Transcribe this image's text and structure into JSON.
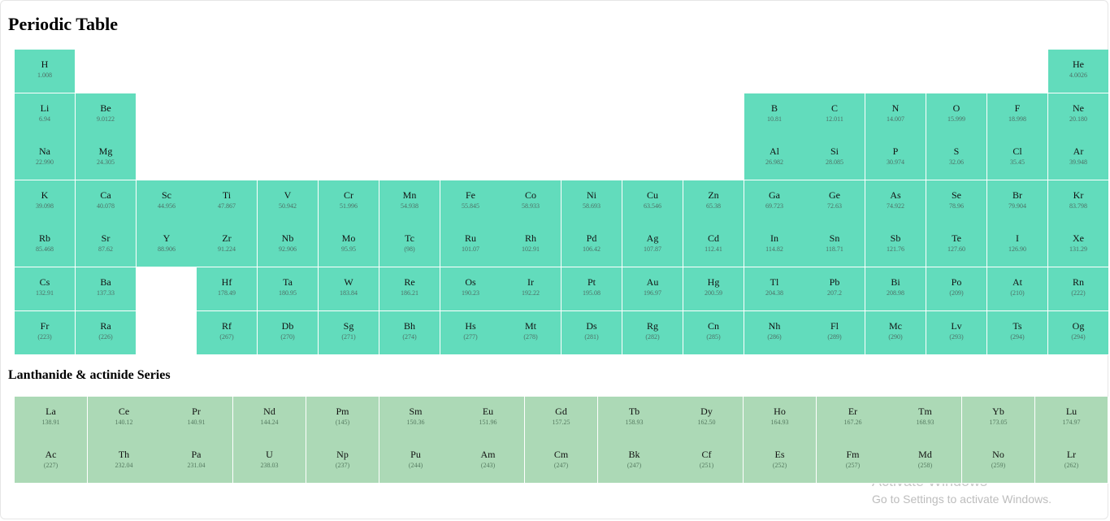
{
  "title": "Periodic Table",
  "series_title": "Lanthanide & actinide Series",
  "colors": {
    "main_cell": "#62dcbc",
    "series_cell": "#acd9b6"
  },
  "main_elements": [
    {
      "symbol": "H",
      "mass": "1.008",
      "period": 1,
      "group": 1
    },
    {
      "symbol": "He",
      "mass": "4.0026",
      "period": 1,
      "group": 18
    },
    {
      "symbol": "Li",
      "mass": "6.94",
      "period": 2,
      "group": 1
    },
    {
      "symbol": "Be",
      "mass": "9.0122",
      "period": 2,
      "group": 2
    },
    {
      "symbol": "B",
      "mass": "10.81",
      "period": 2,
      "group": 13
    },
    {
      "symbol": "C",
      "mass": "12.011",
      "period": 2,
      "group": 14
    },
    {
      "symbol": "N",
      "mass": "14.007",
      "period": 2,
      "group": 15
    },
    {
      "symbol": "O",
      "mass": "15.999",
      "period": 2,
      "group": 16
    },
    {
      "symbol": "F",
      "mass": "18.998",
      "period": 2,
      "group": 17
    },
    {
      "symbol": "Ne",
      "mass": "20.180",
      "period": 2,
      "group": 18
    },
    {
      "symbol": "Na",
      "mass": "22.990",
      "period": 3,
      "group": 1
    },
    {
      "symbol": "Mg",
      "mass": "24.305",
      "period": 3,
      "group": 2
    },
    {
      "symbol": "Al",
      "mass": "26.982",
      "period": 3,
      "group": 13
    },
    {
      "symbol": "Si",
      "mass": "28.085",
      "period": 3,
      "group": 14
    },
    {
      "symbol": "P",
      "mass": "30.974",
      "period": 3,
      "group": 15
    },
    {
      "symbol": "S",
      "mass": "32.06",
      "period": 3,
      "group": 16
    },
    {
      "symbol": "Cl",
      "mass": "35.45",
      "period": 3,
      "group": 17
    },
    {
      "symbol": "Ar",
      "mass": "39.948",
      "period": 3,
      "group": 18
    },
    {
      "symbol": "K",
      "mass": "39.098",
      "period": 4,
      "group": 1
    },
    {
      "symbol": "Ca",
      "mass": "40.078",
      "period": 4,
      "group": 2
    },
    {
      "symbol": "Sc",
      "mass": "44.956",
      "period": 4,
      "group": 3
    },
    {
      "symbol": "Ti",
      "mass": "47.867",
      "period": 4,
      "group": 4
    },
    {
      "symbol": "V",
      "mass": "50.942",
      "period": 4,
      "group": 5
    },
    {
      "symbol": "Cr",
      "mass": "51.996",
      "period": 4,
      "group": 6
    },
    {
      "symbol": "Mn",
      "mass": "54.938",
      "period": 4,
      "group": 7
    },
    {
      "symbol": "Fe",
      "mass": "55.845",
      "period": 4,
      "group": 8
    },
    {
      "symbol": "Co",
      "mass": "58.933",
      "period": 4,
      "group": 9
    },
    {
      "symbol": "Ni",
      "mass": "58.693",
      "period": 4,
      "group": 10
    },
    {
      "symbol": "Cu",
      "mass": "63.546",
      "period": 4,
      "group": 11
    },
    {
      "symbol": "Zn",
      "mass": "65.38",
      "period": 4,
      "group": 12
    },
    {
      "symbol": "Ga",
      "mass": "69.723",
      "period": 4,
      "group": 13
    },
    {
      "symbol": "Ge",
      "mass": "72.63",
      "period": 4,
      "group": 14
    },
    {
      "symbol": "As",
      "mass": "74.922",
      "period": 4,
      "group": 15
    },
    {
      "symbol": "Se",
      "mass": "78.96",
      "period": 4,
      "group": 16
    },
    {
      "symbol": "Br",
      "mass": "79.904",
      "period": 4,
      "group": 17
    },
    {
      "symbol": "Kr",
      "mass": "83.798",
      "period": 4,
      "group": 18
    },
    {
      "symbol": "Rb",
      "mass": "85.468",
      "period": 5,
      "group": 1
    },
    {
      "symbol": "Sr",
      "mass": "87.62",
      "period": 5,
      "group": 2
    },
    {
      "symbol": "Y",
      "mass": "88.906",
      "period": 5,
      "group": 3
    },
    {
      "symbol": "Zr",
      "mass": "91.224",
      "period": 5,
      "group": 4
    },
    {
      "symbol": "Nb",
      "mass": "92.906",
      "period": 5,
      "group": 5
    },
    {
      "symbol": "Mo",
      "mass": "95.95",
      "period": 5,
      "group": 6
    },
    {
      "symbol": "Tc",
      "mass": "(98)",
      "period": 5,
      "group": 7
    },
    {
      "symbol": "Ru",
      "mass": "101.07",
      "period": 5,
      "group": 8
    },
    {
      "symbol": "Rh",
      "mass": "102.91",
      "period": 5,
      "group": 9
    },
    {
      "symbol": "Pd",
      "mass": "106.42",
      "period": 5,
      "group": 10
    },
    {
      "symbol": "Ag",
      "mass": "107.87",
      "period": 5,
      "group": 11
    },
    {
      "symbol": "Cd",
      "mass": "112.41",
      "period": 5,
      "group": 12
    },
    {
      "symbol": "In",
      "mass": "114.82",
      "period": 5,
      "group": 13
    },
    {
      "symbol": "Sn",
      "mass": "118.71",
      "period": 5,
      "group": 14
    },
    {
      "symbol": "Sb",
      "mass": "121.76",
      "period": 5,
      "group": 15
    },
    {
      "symbol": "Te",
      "mass": "127.60",
      "period": 5,
      "group": 16
    },
    {
      "symbol": "I",
      "mass": "126.90",
      "period": 5,
      "group": 17
    },
    {
      "symbol": "Xe",
      "mass": "131.29",
      "period": 5,
      "group": 18
    },
    {
      "symbol": "Cs",
      "mass": "132.91",
      "period": 6,
      "group": 1
    },
    {
      "symbol": "Ba",
      "mass": "137.33",
      "period": 6,
      "group": 2
    },
    {
      "symbol": "Hf",
      "mass": "178.49",
      "period": 6,
      "group": 4
    },
    {
      "symbol": "Ta",
      "mass": "180.95",
      "period": 6,
      "group": 5
    },
    {
      "symbol": "W",
      "mass": "183.84",
      "period": 6,
      "group": 6
    },
    {
      "symbol": "Re",
      "mass": "186.21",
      "period": 6,
      "group": 7
    },
    {
      "symbol": "Os",
      "mass": "190.23",
      "period": 6,
      "group": 8
    },
    {
      "symbol": "Ir",
      "mass": "192.22",
      "period": 6,
      "group": 9
    },
    {
      "symbol": "Pt",
      "mass": "195.08",
      "period": 6,
      "group": 10
    },
    {
      "symbol": "Au",
      "mass": "196.97",
      "period": 6,
      "group": 11
    },
    {
      "symbol": "Hg",
      "mass": "200.59",
      "period": 6,
      "group": 12
    },
    {
      "symbol": "Tl",
      "mass": "204.38",
      "period": 6,
      "group": 13
    },
    {
      "symbol": "Pb",
      "mass": "207.2",
      "period": 6,
      "group": 14
    },
    {
      "symbol": "Bi",
      "mass": "208.98",
      "period": 6,
      "group": 15
    },
    {
      "symbol": "Po",
      "mass": "(209)",
      "period": 6,
      "group": 16
    },
    {
      "symbol": "At",
      "mass": "(210)",
      "period": 6,
      "group": 17
    },
    {
      "symbol": "Rn",
      "mass": "(222)",
      "period": 6,
      "group": 18
    },
    {
      "symbol": "Fr",
      "mass": "(223)",
      "period": 7,
      "group": 1
    },
    {
      "symbol": "Ra",
      "mass": "(226)",
      "period": 7,
      "group": 2
    },
    {
      "symbol": "Rf",
      "mass": "(267)",
      "period": 7,
      "group": 4
    },
    {
      "symbol": "Db",
      "mass": "(270)",
      "period": 7,
      "group": 5
    },
    {
      "symbol": "Sg",
      "mass": "(271)",
      "period": 7,
      "group": 6
    },
    {
      "symbol": "Bh",
      "mass": "(274)",
      "period": 7,
      "group": 7
    },
    {
      "symbol": "Hs",
      "mass": "(277)",
      "period": 7,
      "group": 8
    },
    {
      "symbol": "Mt",
      "mass": "(278)",
      "period": 7,
      "group": 9
    },
    {
      "symbol": "Ds",
      "mass": "(281)",
      "period": 7,
      "group": 10
    },
    {
      "symbol": "Rg",
      "mass": "(282)",
      "period": 7,
      "group": 11
    },
    {
      "symbol": "Cn",
      "mass": "(285)",
      "period": 7,
      "group": 12
    },
    {
      "symbol": "Nh",
      "mass": "(286)",
      "period": 7,
      "group": 13
    },
    {
      "symbol": "Fl",
      "mass": "(289)",
      "period": 7,
      "group": 14
    },
    {
      "symbol": "Mc",
      "mass": "(290)",
      "period": 7,
      "group": 15
    },
    {
      "symbol": "Lv",
      "mass": "(293)",
      "period": 7,
      "group": 16
    },
    {
      "symbol": "Ts",
      "mass": "(294)",
      "period": 7,
      "group": 17
    },
    {
      "symbol": "Og",
      "mass": "(294)",
      "period": 7,
      "group": 18
    }
  ],
  "lanthanides": [
    {
      "symbol": "La",
      "mass": "138.91"
    },
    {
      "symbol": "Ce",
      "mass": "140.12"
    },
    {
      "symbol": "Pr",
      "mass": "140.91"
    },
    {
      "symbol": "Nd",
      "mass": "144.24"
    },
    {
      "symbol": "Pm",
      "mass": "(145)"
    },
    {
      "symbol": "Sm",
      "mass": "150.36"
    },
    {
      "symbol": "Eu",
      "mass": "151.96"
    },
    {
      "symbol": "Gd",
      "mass": "157.25"
    },
    {
      "symbol": "Tb",
      "mass": "158.93"
    },
    {
      "symbol": "Dy",
      "mass": "162.50"
    },
    {
      "symbol": "Ho",
      "mass": "164.93"
    },
    {
      "symbol": "Er",
      "mass": "167.26"
    },
    {
      "symbol": "Tm",
      "mass": "168.93"
    },
    {
      "symbol": "Yb",
      "mass": "173.05"
    },
    {
      "symbol": "Lu",
      "mass": "174.97"
    }
  ],
  "actinides": [
    {
      "symbol": "Ac",
      "mass": "(227)"
    },
    {
      "symbol": "Th",
      "mass": "232.04"
    },
    {
      "symbol": "Pa",
      "mass": "231.04"
    },
    {
      "symbol": "U",
      "mass": "238.03"
    },
    {
      "symbol": "Np",
      "mass": "(237)"
    },
    {
      "symbol": "Pu",
      "mass": "(244)"
    },
    {
      "symbol": "Am",
      "mass": "(243)"
    },
    {
      "symbol": "Cm",
      "mass": "(247)"
    },
    {
      "symbol": "Bk",
      "mass": "(247)"
    },
    {
      "symbol": "Cf",
      "mass": "(251)"
    },
    {
      "symbol": "Es",
      "mass": "(252)"
    },
    {
      "symbol": "Fm",
      "mass": "(257)"
    },
    {
      "symbol": "Md",
      "mass": "(258)"
    },
    {
      "symbol": "No",
      "mass": "(259)"
    },
    {
      "symbol": "Lr",
      "mass": "(262)"
    }
  ],
  "watermark": {
    "line1": "Activate Windows",
    "line2": "Go to Settings to activate Windows."
  }
}
